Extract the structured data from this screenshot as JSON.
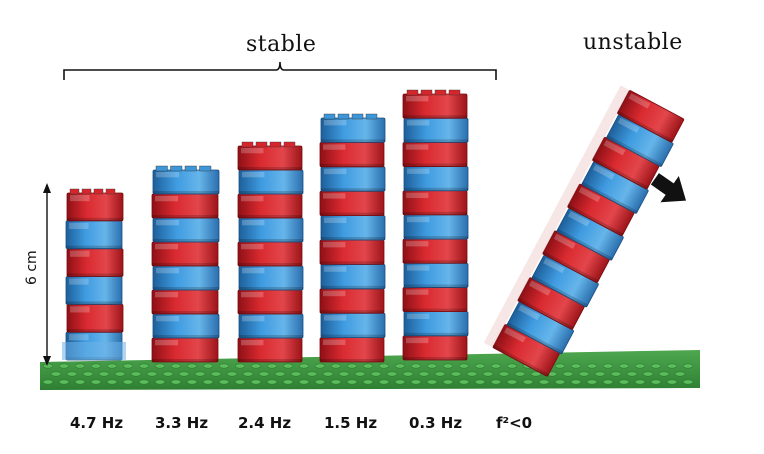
{
  "labels": {
    "stable": "stable",
    "unstable": "unstable",
    "scale": "6 cm"
  },
  "frequencies": [
    "4.7 Hz",
    "3.3 Hz",
    "2.4 Hz",
    "1.5 Hz",
    "0.3 Hz",
    "f²<0"
  ],
  "colors": {
    "red_brick": "#d6252b",
    "blue_brick": "#3d96d8",
    "baseplate": "#3c9a3f",
    "background": "#ffffff"
  }
}
